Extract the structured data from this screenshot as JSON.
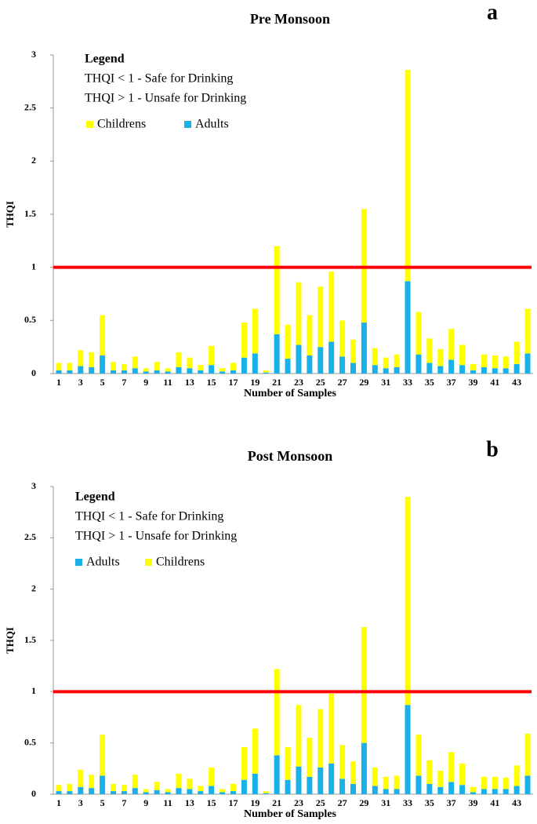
{
  "chart_data": [
    {
      "type": "stacked_bar",
      "title": "Pre Monsoon",
      "panel_label": "a",
      "xlabel": "Number of Samples",
      "ylabel": "THQI",
      "legend_title": "Legend",
      "annotations": [
        "THQI < 1 - Safe for Drinking",
        "THQI > 1 - Unsafe for Drinking"
      ],
      "legend_reverse": true,
      "reference_line": 1,
      "reference_color": "#ff0000",
      "categories": [
        "1",
        null,
        "3",
        null,
        "5",
        null,
        "7",
        null,
        "9",
        null,
        "11",
        null,
        "13",
        null,
        "15",
        null,
        "17",
        null,
        "19",
        null,
        "21",
        null,
        "23",
        null,
        "25",
        null,
        "27",
        null,
        "29",
        null,
        "31",
        null,
        "33",
        null,
        "35",
        null,
        "37",
        null,
        "39",
        null,
        "41",
        null,
        "43",
        null
      ],
      "series": [
        {
          "name": "Adults",
          "color": "#1ab0e8",
          "values": [
            0.03,
            0.03,
            0.07,
            0.06,
            0.17,
            0.03,
            0.03,
            0.05,
            0.02,
            0.03,
            0.02,
            0.06,
            0.05,
            0.03,
            0.08,
            0.02,
            0.03,
            0.15,
            0.19,
            0.01,
            0.37,
            0.14,
            0.27,
            0.17,
            0.25,
            0.3,
            0.16,
            0.1,
            0.48,
            0.08,
            0.05,
            0.06,
            0.87,
            0.18,
            0.1,
            0.07,
            0.13,
            0.08,
            0.03,
            0.06,
            0.05,
            0.05,
            0.09,
            0.19
          ]
        },
        {
          "name": "Childrens",
          "color": "#ffff00",
          "values": [
            0.07,
            0.07,
            0.15,
            0.14,
            0.38,
            0.08,
            0.06,
            0.11,
            0.03,
            0.08,
            0.03,
            0.14,
            0.1,
            0.05,
            0.18,
            0.03,
            0.07,
            0.33,
            0.42,
            0.02,
            0.83,
            0.32,
            0.59,
            0.38,
            0.57,
            0.66,
            0.34,
            0.22,
            1.07,
            0.16,
            0.1,
            0.12,
            1.99,
            0.4,
            0.23,
            0.16,
            0.29,
            0.19,
            0.06,
            0.12,
            0.12,
            0.11,
            0.21,
            0.42
          ]
        }
      ],
      "ylim": [
        0,
        3
      ],
      "yticks": [
        0,
        0.5,
        1,
        1.5,
        2,
        2.5,
        3
      ]
    },
    {
      "type": "stacked_bar",
      "title": "Post Monsoon",
      "panel_label": "b",
      "xlabel": "Number of Samples",
      "ylabel": "THQI",
      "legend_title": "Legend",
      "annotations": [
        "THQI < 1 - Safe for Drinking",
        "THQI > 1 - Unsafe for Drinking"
      ],
      "legend_reverse": false,
      "reference_line": 1,
      "reference_color": "#ff0000",
      "categories": [
        "1",
        null,
        "3",
        null,
        "5",
        null,
        "7",
        null,
        "9",
        null,
        "11",
        null,
        "13",
        null,
        "15",
        null,
        "17",
        null,
        "19",
        null,
        "21",
        null,
        "23",
        null,
        "25",
        null,
        "27",
        null,
        "29",
        null,
        "31",
        null,
        "33",
        null,
        "35",
        null,
        "37",
        null,
        "39",
        null,
        "41",
        null,
        "43",
        null
      ],
      "series": [
        {
          "name": "Adults",
          "color": "#1ab0e8",
          "values": [
            0.03,
            0.03,
            0.07,
            0.06,
            0.18,
            0.03,
            0.03,
            0.06,
            0.02,
            0.04,
            0.02,
            0.06,
            0.05,
            0.03,
            0.08,
            0.02,
            0.03,
            0.14,
            0.2,
            0.01,
            0.38,
            0.14,
            0.27,
            0.17,
            0.26,
            0.3,
            0.15,
            0.1,
            0.5,
            0.08,
            0.05,
            0.05,
            0.87,
            0.18,
            0.1,
            0.07,
            0.12,
            0.09,
            0.02,
            0.05,
            0.05,
            0.05,
            0.08,
            0.18
          ]
        },
        {
          "name": "Childrens",
          "color": "#ffff00",
          "values": [
            0.06,
            0.07,
            0.17,
            0.13,
            0.4,
            0.07,
            0.06,
            0.13,
            0.03,
            0.08,
            0.03,
            0.14,
            0.1,
            0.05,
            0.18,
            0.03,
            0.07,
            0.32,
            0.44,
            0.02,
            0.84,
            0.32,
            0.6,
            0.38,
            0.57,
            0.68,
            0.33,
            0.22,
            1.13,
            0.18,
            0.12,
            0.13,
            2.03,
            0.4,
            0.23,
            0.16,
            0.29,
            0.21,
            0.05,
            0.12,
            0.12,
            0.11,
            0.2,
            0.41
          ]
        }
      ],
      "ylim": [
        0,
        3
      ],
      "yticks": [
        0,
        0.5,
        1,
        1.5,
        2,
        2.5,
        3
      ]
    }
  ]
}
